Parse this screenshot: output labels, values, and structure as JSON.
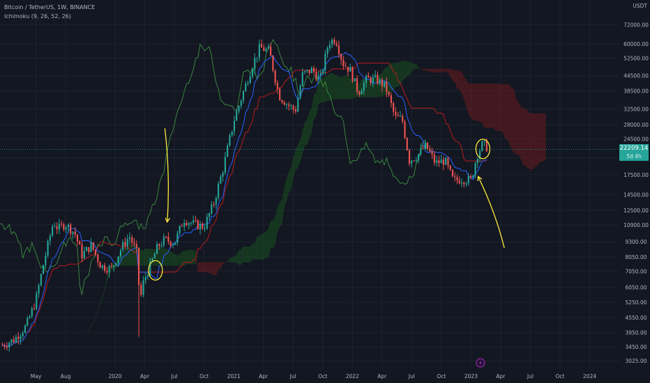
{
  "header": {
    "symbol": "Bitcoin / TetherUS, 1W, BINANCE",
    "indicator": "Ichimoku (9, 26, 52, 26)"
  },
  "price_axis": {
    "currency": "USDT",
    "current_price": "22209.14",
    "countdown": "5d 4h"
  },
  "colors": {
    "background": "#131722",
    "up": "#26a69a",
    "down": "#ef5350",
    "conversion": "#2962ff",
    "base": "#b71c1c",
    "lagging": "#43a047",
    "cloud_bull": "#1b5e20",
    "cloud_bear": "#7f1d1d",
    "annotation": "#ffeb3b",
    "event_marker": "#9c27b0"
  },
  "events": [
    {
      "icon": "lightning-icon",
      "time": 2023.08
    }
  ],
  "chart_data": {
    "type": "candlestick",
    "title": "Bitcoin / TetherUS, 1W, BINANCE",
    "y_scale": "log",
    "y_ticks": [
      72000,
      60000,
      52500,
      44500,
      38500,
      32500,
      28000,
      24500,
      20500,
      17500,
      14500,
      12500,
      10900,
      9300,
      8050,
      7050,
      6050,
      5250,
      4550,
      3950,
      3450,
      3025
    ],
    "y_tick_labels": [
      "72000.00",
      "60000.00",
      "52500.00",
      "44500.00",
      "38500.00",
      "32500.00",
      "28000.00",
      "24500.00",
      "20500.00",
      "17500.00",
      "14500.00",
      "12500.00",
      "10900.00",
      "9300.00",
      "8050.00",
      "7050.00",
      "6050.00",
      "5250.00",
      "4550.00",
      "3950.00",
      "3450.00",
      "3025.00"
    ],
    "x_ticks": [
      {
        "label": "May",
        "t": 2019.333
      },
      {
        "label": "Aug",
        "t": 2019.583
      },
      {
        "label": "2020",
        "t": 2020.0
      },
      {
        "label": "Apr",
        "t": 2020.25
      },
      {
        "label": "Jul",
        "t": 2020.5
      },
      {
        "label": "Oct",
        "t": 2020.75
      },
      {
        "label": "2021",
        "t": 2021.0
      },
      {
        "label": "Apr",
        "t": 2021.25
      },
      {
        "label": "Jul",
        "t": 2021.5
      },
      {
        "label": "Oct",
        "t": 2021.75
      },
      {
        "label": "2022",
        "t": 2022.0
      },
      {
        "label": "Apr",
        "t": 2022.25
      },
      {
        "label": "Jul",
        "t": 2022.5
      },
      {
        "label": "Oct",
        "t": 2022.75
      },
      {
        "label": "2023",
        "t": 2023.0
      },
      {
        "label": "Apr",
        "t": 2023.25
      },
      {
        "label": "Jul",
        "t": 2023.5
      },
      {
        "label": "Oct",
        "t": 2023.75
      },
      {
        "label": "2024",
        "t": 2024.0
      }
    ],
    "price_path": [
      [
        2019.05,
        3500
      ],
      [
        2019.15,
        3700
      ],
      [
        2019.25,
        4200
      ],
      [
        2019.33,
        5300
      ],
      [
        2019.4,
        7700
      ],
      [
        2019.48,
        11200
      ],
      [
        2019.52,
        10500
      ],
      [
        2019.58,
        11000
      ],
      [
        2019.66,
        10100
      ],
      [
        2019.72,
        8200
      ],
      [
        2019.8,
        9000
      ],
      [
        2019.88,
        7400
      ],
      [
        2019.97,
        7200
      ],
      [
        2020.05,
        8700
      ],
      [
        2020.12,
        9800
      ],
      [
        2020.18,
        8500
      ],
      [
        2020.21,
        5300
      ],
      [
        2020.24,
        6400
      ],
      [
        2020.3,
        7500
      ],
      [
        2020.36,
        8900
      ],
      [
        2020.42,
        9500
      ],
      [
        2020.5,
        9200
      ],
      [
        2020.58,
        11500
      ],
      [
        2020.66,
        11000
      ],
      [
        2020.75,
        10700
      ],
      [
        2020.83,
        13300
      ],
      [
        2020.91,
        18500
      ],
      [
        2021.0,
        29000
      ],
      [
        2021.08,
        38000
      ],
      [
        2021.15,
        48000
      ],
      [
        2021.22,
        58000
      ],
      [
        2021.3,
        56000
      ],
      [
        2021.38,
        37000
      ],
      [
        2021.45,
        34000
      ],
      [
        2021.52,
        32000
      ],
      [
        2021.58,
        45000
      ],
      [
        2021.66,
        47000
      ],
      [
        2021.73,
        43000
      ],
      [
        2021.8,
        61000
      ],
      [
        2021.86,
        63000
      ],
      [
        2021.92,
        50000
      ],
      [
        2021.98,
        47000
      ],
      [
        2022.05,
        38000
      ],
      [
        2022.12,
        43000
      ],
      [
        2022.2,
        43000
      ],
      [
        2022.28,
        40000
      ],
      [
        2022.36,
        30000
      ],
      [
        2022.42,
        29500
      ],
      [
        2022.48,
        20000
      ],
      [
        2022.55,
        21000
      ],
      [
        2022.62,
        23000
      ],
      [
        2022.7,
        19500
      ],
      [
        2022.78,
        20000
      ],
      [
        2022.85,
        16500
      ],
      [
        2022.92,
        16800
      ],
      [
        2023.0,
        16600
      ],
      [
        2023.05,
        21000
      ],
      [
        2023.1,
        23500
      ],
      [
        2023.15,
        22209
      ]
    ],
    "annotations": [
      {
        "type": "arrow",
        "label": "down-arrow",
        "from": [
          2020.42,
          27000
        ],
        "to": [
          2020.44,
          11200
        ]
      },
      {
        "type": "circle",
        "label": "circle-2020",
        "center": [
          2020.34,
          7100
        ]
      },
      {
        "type": "circle",
        "label": "circle-2023",
        "center": [
          2023.1,
          22300
        ]
      },
      {
        "type": "arrow",
        "label": "up-arrow",
        "from": [
          2023.28,
          8800
        ],
        "to": [
          2023.06,
          17200
        ]
      }
    ]
  }
}
